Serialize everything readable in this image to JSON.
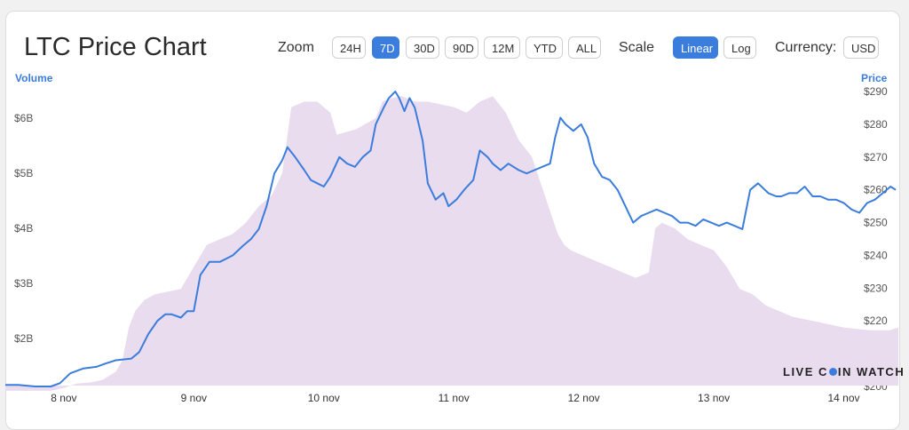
{
  "header": {
    "title": "LTC Price Chart",
    "zoom_label": "Zoom",
    "zoom_options": [
      "24H",
      "7D",
      "30D",
      "90D",
      "12M",
      "YTD",
      "ALL"
    ],
    "zoom_selected": "7D",
    "scale_label": "Scale",
    "scale_options": [
      "Linear",
      "Log"
    ],
    "scale_selected": "Linear",
    "currency_label": "Currency:",
    "currency_value": "USD"
  },
  "watermark": {
    "part1": "LIVE C",
    "part2": "IN WATCH"
  },
  "colors": {
    "price_line": "#3b7ddd",
    "volume_fill": "#e9dcef",
    "accent": "#3b7ddd"
  },
  "chart_data": {
    "type": "line",
    "title": "LTC Price Chart",
    "left_axis_label": "Volume",
    "right_axis_label": "Price",
    "volume_ticks": [
      "$2B",
      "$3B",
      "$4B",
      "$5B",
      "$6B"
    ],
    "volume_tick_values": [
      2,
      3,
      4,
      5,
      6
    ],
    "volume_range": [
      1.0,
      6.8
    ],
    "price_ticks": [
      "$200",
      "$210",
      "$220",
      "$230",
      "$240",
      "$250",
      "$260",
      "$270",
      "$280",
      "$290"
    ],
    "price_tick_values": [
      200,
      210,
      220,
      230,
      240,
      250,
      260,
      270,
      280,
      290
    ],
    "price_range": [
      200,
      293
    ],
    "x_ticks": [
      "8 nov",
      "9 nov",
      "10 nov",
      "11 nov",
      "12 nov",
      "13 nov",
      "14 nov"
    ],
    "x_tick_positions_days": [
      1,
      2,
      3,
      4,
      5,
      6,
      7
    ],
    "x_range_days": [
      0.55,
      7.42
    ],
    "series": [
      {
        "name": "Price",
        "x": [
          0.55,
          0.65,
          0.78,
          0.9,
          0.97,
          1.05,
          1.15,
          1.25,
          1.32,
          1.4,
          1.52,
          1.58,
          1.65,
          1.72,
          1.78,
          1.83,
          1.9,
          1.95,
          2.0,
          2.05,
          2.12,
          2.2,
          2.3,
          2.38,
          2.44,
          2.5,
          2.56,
          2.62,
          2.68,
          2.72,
          2.78,
          2.85,
          2.9,
          2.95,
          3.0,
          3.05,
          3.12,
          3.18,
          3.24,
          3.3,
          3.36,
          3.4,
          3.46,
          3.5,
          3.55,
          3.58,
          3.62,
          3.66,
          3.7,
          3.76,
          3.8,
          3.86,
          3.92,
          3.96,
          4.02,
          4.08,
          4.15,
          4.2,
          4.26,
          4.3,
          4.36,
          4.42,
          4.5,
          4.56,
          4.62,
          4.68,
          4.74,
          4.78,
          4.82,
          4.86,
          4.92,
          4.98,
          5.03,
          5.08,
          5.14,
          5.2,
          5.26,
          5.32,
          5.38,
          5.44,
          5.5,
          5.56,
          5.62,
          5.68,
          5.74,
          5.8,
          5.86,
          5.92,
          5.98,
          6.04,
          6.1,
          6.16,
          6.22,
          6.28,
          6.34,
          6.42,
          6.48,
          6.52,
          6.58,
          6.64,
          6.7,
          6.76,
          6.82,
          6.88,
          6.94,
          7.0,
          7.06,
          7.12,
          7.18,
          7.24,
          7.3,
          7.36,
          7.4
        ],
        "values": [
          200.5,
          200.5,
          200,
          200,
          201,
          204,
          205.5,
          206,
          207,
          208,
          208.5,
          210.5,
          216,
          220,
          222,
          222,
          221,
          223,
          223,
          234,
          238,
          238,
          240,
          243,
          245,
          248,
          255,
          265,
          269,
          273,
          270,
          266,
          263,
          262,
          261,
          264,
          270,
          268,
          267,
          270,
          272,
          280,
          285,
          288,
          290,
          288,
          284,
          288,
          285,
          275,
          262,
          257,
          259,
          255,
          257,
          260,
          263,
          272,
          270,
          268,
          266,
          268,
          266,
          265,
          266,
          267,
          268,
          276,
          282,
          280,
          278,
          280,
          276,
          268,
          264,
          263,
          260,
          255,
          250,
          252,
          253,
          254,
          253,
          252,
          250,
          250,
          249,
          251,
          250,
          249,
          250,
          249,
          248,
          260,
          262,
          259,
          258,
          258,
          259,
          259,
          261,
          258,
          258,
          257,
          257,
          256,
          254,
          253,
          256,
          257,
          259,
          261,
          260
        ]
      },
      {
        "name": "Volume",
        "x": [
          0.55,
          0.9,
          1.0,
          1.1,
          1.2,
          1.3,
          1.4,
          1.45,
          1.5,
          1.55,
          1.62,
          1.7,
          1.8,
          1.9,
          2.0,
          2.1,
          2.2,
          2.3,
          2.4,
          2.5,
          2.6,
          2.68,
          2.75,
          2.85,
          2.95,
          3.05,
          3.1,
          3.25,
          3.4,
          3.45,
          3.5,
          3.6,
          3.7,
          3.8,
          3.9,
          4.0,
          4.1,
          4.2,
          4.3,
          4.4,
          4.5,
          4.6,
          4.7,
          4.8,
          4.85,
          4.9,
          5.0,
          5.1,
          5.2,
          5.3,
          5.4,
          5.5,
          5.55,
          5.6,
          5.7,
          5.8,
          5.9,
          6.0,
          6.1,
          6.2,
          6.3,
          6.4,
          6.5,
          6.6,
          6.8,
          7.0,
          7.2,
          7.35,
          7.42
        ],
        "values": [
          1.05,
          1.05,
          1.1,
          1.18,
          1.2,
          1.25,
          1.4,
          1.6,
          2.2,
          2.5,
          2.7,
          2.8,
          2.85,
          2.9,
          3.3,
          3.7,
          3.8,
          3.9,
          4.1,
          4.4,
          4.6,
          5.0,
          6.2,
          6.3,
          6.3,
          6.1,
          5.7,
          5.8,
          6.0,
          6.3,
          6.35,
          6.4,
          6.3,
          6.3,
          6.25,
          6.2,
          6.1,
          6.3,
          6.4,
          6.1,
          5.6,
          5.3,
          4.6,
          3.9,
          3.7,
          3.6,
          3.5,
          3.4,
          3.3,
          3.2,
          3.1,
          3.2,
          4.0,
          4.1,
          4.0,
          3.8,
          3.7,
          3.6,
          3.3,
          2.9,
          2.8,
          2.6,
          2.5,
          2.4,
          2.3,
          2.2,
          2.15,
          2.15,
          2.2
        ]
      }
    ]
  }
}
